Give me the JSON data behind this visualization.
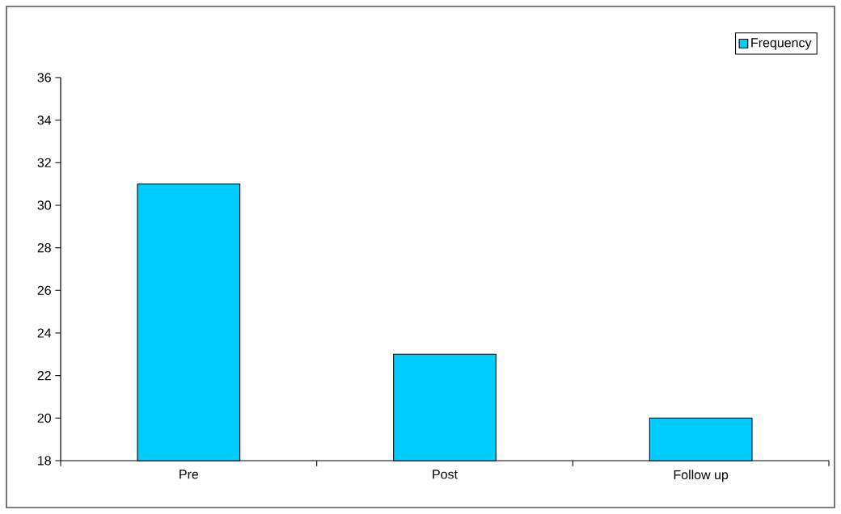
{
  "chart_data": {
    "type": "bar",
    "categories": [
      "Pre",
      "Post",
      "Follow up"
    ],
    "series": [
      {
        "name": "Frequency",
        "color": "#00ccff",
        "values": [
          31,
          23,
          20
        ]
      }
    ],
    "ylim": [
      18,
      36
    ],
    "yticks": [
      18,
      20,
      22,
      24,
      26,
      28,
      30,
      32,
      34,
      36
    ],
    "legend": "top right"
  }
}
